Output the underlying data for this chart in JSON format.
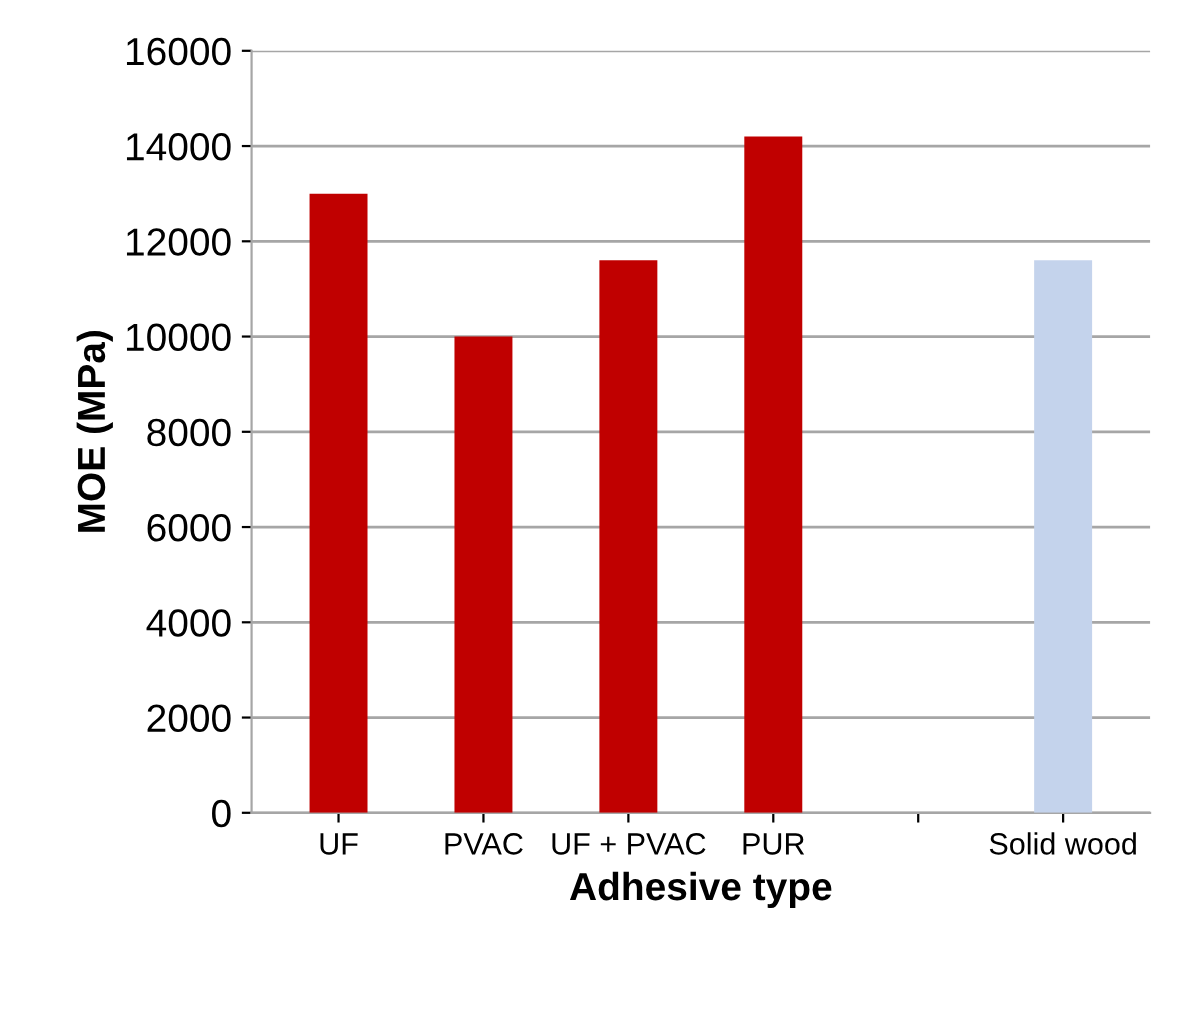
{
  "chart_data": {
    "type": "bar",
    "xlabel": "Adhesive type",
    "ylabel": "MOE (MPa)",
    "categories": [
      "UF",
      "PVAC",
      "UF + PVAC",
      "PUR",
      null,
      "Solid wood"
    ],
    "values": [
      13000,
      10000,
      11600,
      14200,
      null,
      11600
    ],
    "colors": [
      "#c00000",
      "#c00000",
      "#c00000",
      "#c00000",
      "#c00000",
      "#c4d3ec"
    ],
    "ylim": [
      0,
      16000
    ],
    "yticks": [
      0,
      2000,
      4000,
      6000,
      8000,
      10000,
      12000,
      14000,
      16000
    ],
    "grid": "y"
  }
}
